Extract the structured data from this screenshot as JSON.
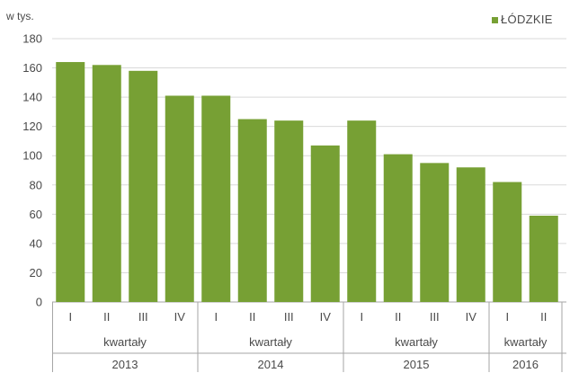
{
  "chart_data": {
    "type": "bar",
    "ylabel": "w tys.",
    "ylim": [
      0,
      180
    ],
    "ytick_step": 20,
    "grid": true,
    "legend_position": "top-right",
    "series": [
      {
        "name": "ŁÓDZKIE",
        "color": "#77a034",
        "values": [
          164,
          162,
          158,
          141,
          141,
          125,
          124,
          107,
          124,
          101,
          95,
          92,
          82,
          59
        ]
      }
    ],
    "categories": [
      "I",
      "II",
      "III",
      "IV",
      "I",
      "II",
      "III",
      "IV",
      "I",
      "II",
      "III",
      "IV",
      "I",
      "II"
    ],
    "groups": [
      {
        "label": "kwartały",
        "year": "2013",
        "count": 4
      },
      {
        "label": "kwartały",
        "year": "2014",
        "count": 4
      },
      {
        "label": "kwartały",
        "year": "2015",
        "count": 4
      },
      {
        "label": "kwartały",
        "year": "2016",
        "count": 2
      }
    ]
  }
}
